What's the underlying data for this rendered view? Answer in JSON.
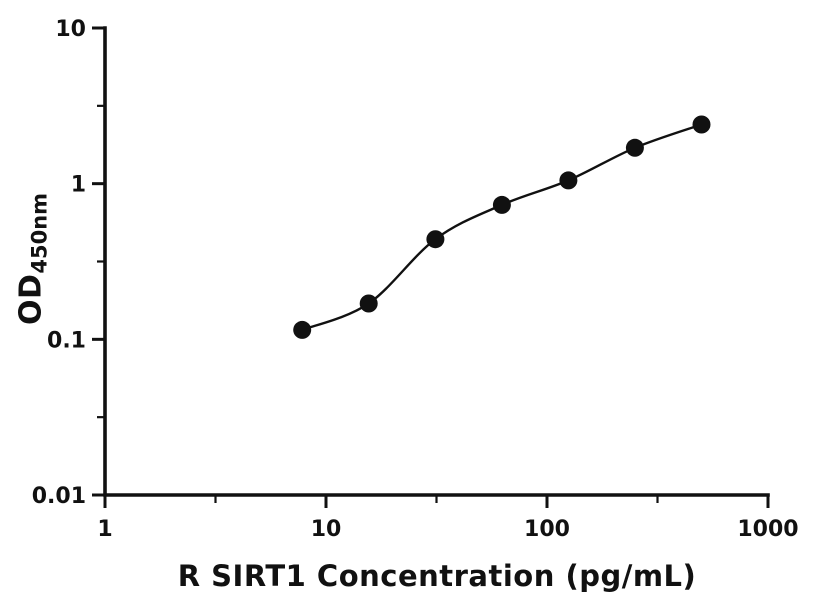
{
  "figure": {
    "background": "#ffffff"
  },
  "colors": {
    "axis": "#111111",
    "marker": "#111111",
    "curve": "#111111",
    "tick_label": "#111111"
  },
  "chart_data": {
    "type": "scatter",
    "title": "",
    "xlabel": "R SIRT1 Concentration (pg/mL)",
    "ylabel": "OD",
    "ylabel_subscript": "450nm",
    "x_scale": "log",
    "y_scale": "log",
    "xlim": [
      1,
      1000
    ],
    "ylim": [
      0.01,
      10
    ],
    "x_ticks": [
      1,
      10,
      100,
      1000
    ],
    "x_tick_labels": [
      "1",
      "10",
      "100",
      "1000"
    ],
    "y_ticks": [
      0.01,
      0.1,
      1,
      10
    ],
    "y_tick_labels": [
      "0.01",
      "0.1",
      "1",
      "10"
    ],
    "minor_ticks": "half-decade",
    "grid": false,
    "legend": false,
    "series": [
      {
        "name": "standard-curve",
        "marker": "filled-circle",
        "marker_radius_px": 9,
        "fit": "smooth-curve",
        "x": [
          7.8,
          15.6,
          31.25,
          62.5,
          125,
          250,
          500
        ],
        "y": [
          0.115,
          0.17,
          0.44,
          0.73,
          1.05,
          1.7,
          2.4
        ]
      }
    ]
  }
}
